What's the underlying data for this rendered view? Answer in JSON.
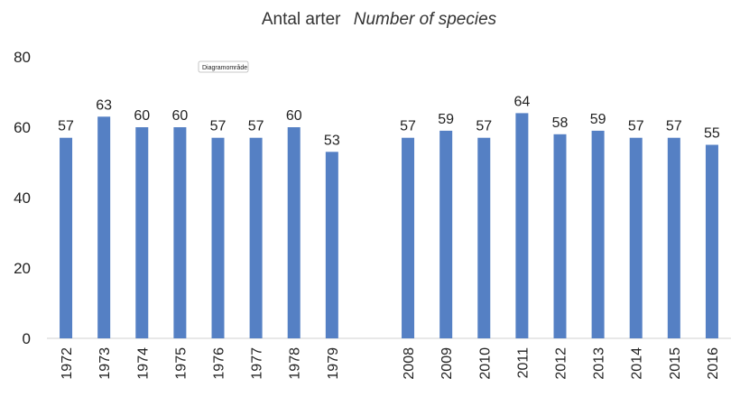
{
  "chart_data": {
    "type": "bar",
    "title": "Antal arter",
    "subtitle": "Number of species",
    "categories": [
      "1972",
      "1973",
      "1974",
      "1975",
      "1976",
      "1977",
      "1978",
      "1979",
      "",
      "2008",
      "2009",
      "2010",
      "2011",
      "2012",
      "2013",
      "2014",
      "2015",
      "2016"
    ],
    "values": [
      57,
      63,
      60,
      60,
      57,
      57,
      60,
      53,
      null,
      57,
      59,
      57,
      64,
      58,
      59,
      57,
      57,
      55
    ],
    "ylim": [
      0,
      80
    ],
    "yticks": [
      0,
      20,
      40,
      60,
      80
    ],
    "grid": false,
    "legend": "none",
    "bar_color": "#5580c4",
    "tooltip": "Diagramområde"
  }
}
